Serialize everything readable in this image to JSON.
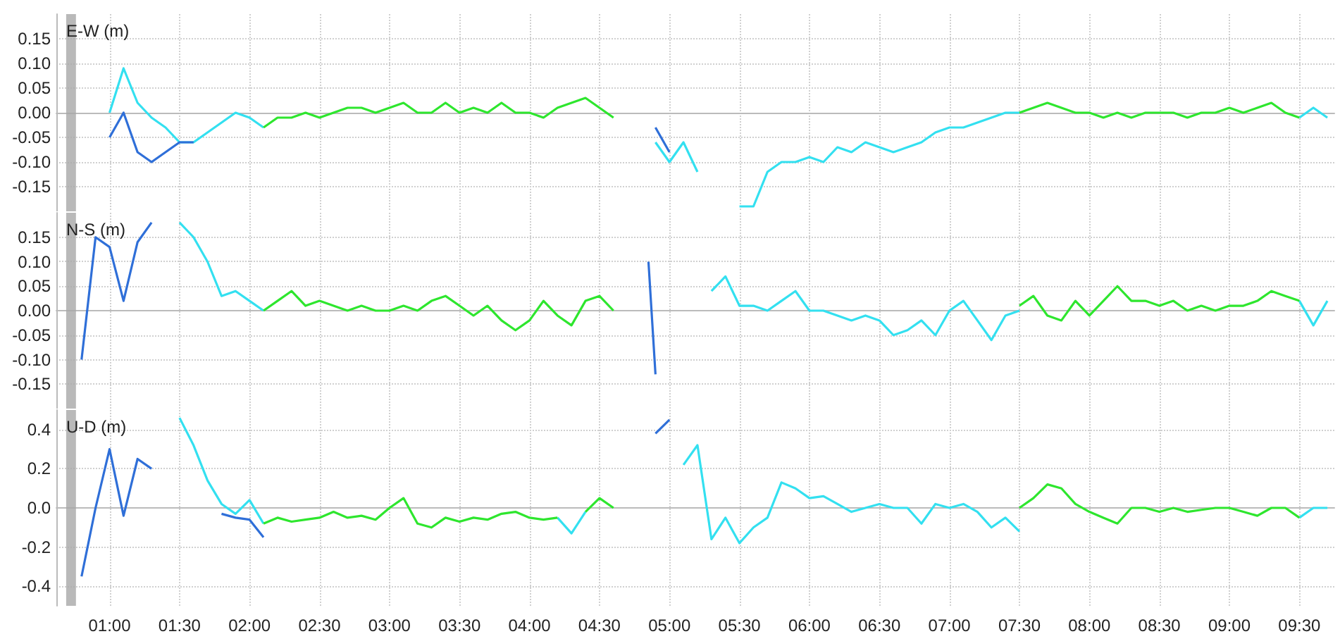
{
  "chart_data": [
    {
      "type": "line",
      "title": "E-W (m)",
      "marker": "none",
      "grid": true,
      "tick_labels": "y",
      "xlim": [
        0.62,
        9.75
      ],
      "ylim": [
        -0.2,
        0.2
      ],
      "xticks": [
        {
          "value": 1,
          "label": null
        },
        {
          "value": 1.5,
          "label": null
        },
        {
          "value": 2,
          "label": null
        },
        {
          "value": 2.5,
          "label": null
        },
        {
          "value": 3,
          "label": null
        },
        {
          "value": 3.5,
          "label": null
        },
        {
          "value": 4,
          "label": null
        },
        {
          "value": 4.5,
          "label": null
        },
        {
          "value": 5,
          "label": null
        },
        {
          "value": 5.5,
          "label": null
        },
        {
          "value": 6,
          "label": null
        },
        {
          "value": 6.5,
          "label": null
        },
        {
          "value": 7,
          "label": null
        },
        {
          "value": 7.5,
          "label": null
        },
        {
          "value": 8,
          "label": null
        },
        {
          "value": 8.5,
          "label": null
        },
        {
          "value": 9,
          "label": null
        },
        {
          "value": 9.5,
          "label": null
        }
      ],
      "yticks": [
        {
          "value": -0.15,
          "label": "-0.15"
        },
        {
          "value": -0.1,
          "label": "-0.10"
        },
        {
          "value": -0.05,
          "label": "-0.05"
        },
        {
          "value": 0,
          "label": "0.00"
        },
        {
          "value": 0.05,
          "label": "0.05"
        },
        {
          "value": 0.1,
          "label": "0.10"
        },
        {
          "value": 0.15,
          "label": "0.15"
        }
      ],
      "bands": [
        {
          "axis": "x",
          "from": 0.69,
          "to": 0.76,
          "color": "#a8a8a8"
        }
      ],
      "series": [
        {
          "color": "#33e0f0",
          "x": [
            1.0,
            1.1,
            1.2,
            1.3,
            1.4,
            1.5,
            1.6,
            1.7,
            1.8,
            1.9,
            2.0,
            2.1,
            2.2,
            4.9,
            5.0,
            5.1,
            5.2,
            5.3,
            5.4,
            5.5,
            5.6,
            5.7,
            5.8,
            5.9,
            6.0,
            6.1,
            6.2,
            6.3,
            6.4,
            6.5,
            6.6,
            6.7,
            6.8,
            6.9,
            7.0,
            7.1,
            7.2,
            7.3,
            7.4,
            7.5,
            7.6,
            9.5,
            9.6,
            9.7
          ],
          "values": [
            0.0,
            0.09,
            0.02,
            -0.01,
            -0.03,
            -0.06,
            -0.06,
            -0.04,
            -0.02,
            0.0,
            -0.01,
            -0.03,
            null,
            -0.06,
            -0.1,
            -0.06,
            -0.12,
            null,
            null,
            -0.19,
            -0.19,
            -0.12,
            -0.1,
            -0.1,
            -0.09,
            -0.1,
            -0.07,
            -0.08,
            -0.06,
            -0.07,
            -0.08,
            -0.07,
            -0.06,
            -0.04,
            -0.03,
            -0.03,
            -0.02,
            -0.01,
            0.0,
            0.0,
            null,
            -0.01,
            0.01,
            -0.01
          ]
        },
        {
          "color": "#2f6fd8",
          "x": [
            1.0,
            1.1,
            1.2,
            1.3,
            1.4,
            1.5,
            1.6,
            1.7,
            4.9,
            5.0
          ],
          "values": [
            -0.05,
            0.0,
            -0.08,
            -0.1,
            -0.08,
            -0.06,
            -0.06,
            null,
            -0.03,
            -0.08
          ]
        },
        {
          "color": "#2ee62e",
          "x": [
            2.1,
            2.2,
            2.3,
            2.4,
            2.5,
            2.6,
            2.7,
            2.8,
            2.9,
            3.0,
            3.1,
            3.2,
            3.3,
            3.4,
            3.5,
            3.6,
            3.7,
            3.8,
            3.9,
            4.0,
            4.1,
            4.2,
            4.3,
            4.4,
            4.5,
            4.6,
            4.7,
            7.5,
            7.6,
            7.7,
            7.8,
            7.9,
            8.0,
            8.1,
            8.2,
            8.3,
            8.4,
            8.5,
            8.6,
            8.7,
            8.8,
            8.9,
            9.0,
            9.1,
            9.2,
            9.3,
            9.4,
            9.5
          ],
          "values": [
            -0.03,
            -0.01,
            -0.01,
            0.0,
            -0.01,
            0.0,
            0.01,
            0.01,
            0.0,
            0.01,
            0.02,
            0.0,
            0.0,
            0.02,
            0.0,
            0.01,
            0.0,
            0.02,
            0.0,
            0.0,
            -0.01,
            0.01,
            0.02,
            0.03,
            0.01,
            -0.01,
            null,
            0.0,
            0.01,
            0.02,
            0.01,
            0.0,
            0.0,
            -0.01,
            0.0,
            -0.01,
            0.0,
            0.0,
            0.0,
            -0.01,
            0.0,
            0.0,
            0.01,
            0.0,
            0.01,
            0.02,
            0.0,
            -0.01
          ]
        }
      ]
    },
    {
      "type": "line",
      "title": "N-S (m)",
      "marker": "none",
      "grid": true,
      "tick_labels": "y",
      "xlim": [
        0.62,
        9.75
      ],
      "ylim": [
        -0.2,
        0.2
      ],
      "xticks": [
        {
          "value": 1,
          "label": null
        },
        {
          "value": 1.5,
          "label": null
        },
        {
          "value": 2,
          "label": null
        },
        {
          "value": 2.5,
          "label": null
        },
        {
          "value": 3,
          "label": null
        },
        {
          "value": 3.5,
          "label": null
        },
        {
          "value": 4,
          "label": null
        },
        {
          "value": 4.5,
          "label": null
        },
        {
          "value": 5,
          "label": null
        },
        {
          "value": 5.5,
          "label": null
        },
        {
          "value": 6,
          "label": null
        },
        {
          "value": 6.5,
          "label": null
        },
        {
          "value": 7,
          "label": null
        },
        {
          "value": 7.5,
          "label": null
        },
        {
          "value": 8,
          "label": null
        },
        {
          "value": 8.5,
          "label": null
        },
        {
          "value": 9,
          "label": null
        },
        {
          "value": 9.5,
          "label": null
        }
      ],
      "yticks": [
        {
          "value": -0.15,
          "label": "-0.15"
        },
        {
          "value": -0.1,
          "label": "-0.10"
        },
        {
          "value": -0.05,
          "label": "-0.05"
        },
        {
          "value": 0,
          "label": "0.00"
        },
        {
          "value": 0.05,
          "label": "0.05"
        },
        {
          "value": 0.1,
          "label": "0.10"
        },
        {
          "value": 0.15,
          "label": "0.15"
        }
      ],
      "bands": [
        {
          "axis": "x",
          "from": 0.69,
          "to": 0.76,
          "color": "#a8a8a8"
        }
      ],
      "series": [
        {
          "color": "#33e0f0",
          "x": [
            1.5,
            1.6,
            1.7,
            1.8,
            1.9,
            2.0,
            2.1,
            2.2,
            5.3,
            5.4,
            5.5,
            5.6,
            5.7,
            5.8,
            5.9,
            6.0,
            6.1,
            6.2,
            6.3,
            6.4,
            6.5,
            6.6,
            6.7,
            6.8,
            6.9,
            7.0,
            7.1,
            7.2,
            7.3,
            7.4,
            7.5,
            7.6,
            9.5,
            9.6,
            9.7
          ],
          "values": [
            0.18,
            0.15,
            0.1,
            0.03,
            0.04,
            0.02,
            0.0,
            null,
            0.04,
            0.07,
            0.01,
            0.01,
            0.0,
            0.02,
            0.04,
            0.0,
            0.0,
            -0.01,
            -0.02,
            -0.01,
            -0.02,
            -0.05,
            -0.04,
            -0.02,
            -0.05,
            0.0,
            0.02,
            -0.02,
            -0.06,
            -0.01,
            0.0,
            null,
            0.02,
            -0.03,
            0.02
          ]
        },
        {
          "color": "#2f6fd8",
          "x": [
            0.8,
            0.9,
            1.0,
            1.1,
            1.2,
            1.3,
            1.4,
            4.85,
            4.9
          ],
          "values": [
            -0.1,
            0.15,
            0.13,
            0.02,
            0.14,
            0.18,
            null,
            0.1,
            -0.13
          ]
        },
        {
          "color": "#2ee62e",
          "x": [
            2.1,
            2.2,
            2.3,
            2.4,
            2.5,
            2.6,
            2.7,
            2.8,
            2.9,
            3.0,
            3.1,
            3.2,
            3.3,
            3.4,
            3.5,
            3.6,
            3.7,
            3.8,
            3.9,
            4.0,
            4.1,
            4.2,
            4.3,
            4.4,
            4.5,
            4.6,
            4.7,
            7.5,
            7.6,
            7.7,
            7.8,
            7.9,
            8.0,
            8.1,
            8.2,
            8.3,
            8.4,
            8.5,
            8.6,
            8.7,
            8.8,
            8.9,
            9.0,
            9.1,
            9.2,
            9.3,
            9.4,
            9.5
          ],
          "values": [
            0.0,
            0.02,
            0.04,
            0.01,
            0.02,
            0.01,
            0.0,
            0.01,
            0.0,
            0.0,
            0.01,
            0.0,
            0.02,
            0.03,
            0.01,
            -0.01,
            0.01,
            -0.02,
            -0.04,
            -0.02,
            0.02,
            -0.01,
            -0.03,
            0.02,
            0.03,
            0.0,
            null,
            0.01,
            0.03,
            -0.01,
            -0.02,
            0.02,
            -0.01,
            0.02,
            0.05,
            0.02,
            0.02,
            0.01,
            0.02,
            0.0,
            0.01,
            0.0,
            0.01,
            0.01,
            0.02,
            0.04,
            0.03,
            0.02
          ]
        }
      ]
    },
    {
      "type": "line",
      "title": "U-D (m)",
      "marker": "none",
      "grid": true,
      "xlim": [
        0.62,
        9.75
      ],
      "ylim": [
        -0.5,
        0.5
      ],
      "xticks": [
        {
          "value": 1,
          "label": "01:00"
        },
        {
          "value": 1.5,
          "label": "01:30"
        },
        {
          "value": 2,
          "label": "02:00"
        },
        {
          "value": 2.5,
          "label": "02:30"
        },
        {
          "value": 3,
          "label": "03:00"
        },
        {
          "value": 3.5,
          "label": "03:30"
        },
        {
          "value": 4,
          "label": "04:00"
        },
        {
          "value": 4.5,
          "label": "04:30"
        },
        {
          "value": 5,
          "label": "05:00"
        },
        {
          "value": 5.5,
          "label": "05:30"
        },
        {
          "value": 6,
          "label": "06:00"
        },
        {
          "value": 6.5,
          "label": "06:30"
        },
        {
          "value": 7,
          "label": "07:00"
        },
        {
          "value": 7.5,
          "label": "07:30"
        },
        {
          "value": 8,
          "label": "08:00"
        },
        {
          "value": 8.5,
          "label": "08:30"
        },
        {
          "value": 9,
          "label": "09:00"
        },
        {
          "value": 9.5,
          "label": "09:30"
        }
      ],
      "yticks": [
        -0.4,
        -0.2,
        {
          "value": 0,
          "label": "0.0"
        },
        0.2,
        0.4
      ],
      "bands": [
        {
          "axis": "x",
          "from": 0.69,
          "to": 0.76,
          "color": "#a8a8a8"
        }
      ],
      "series": [
        {
          "color": "#33e0f0",
          "x": [
            1.5,
            1.6,
            1.7,
            1.8,
            1.9,
            2.0,
            2.1,
            2.2,
            4.2,
            4.3,
            4.4,
            4.5,
            5.1,
            5.2,
            5.3,
            5.4,
            5.5,
            5.6,
            5.7,
            5.8,
            5.9,
            6.0,
            6.1,
            6.2,
            6.3,
            6.4,
            6.5,
            6.6,
            6.7,
            6.8,
            6.9,
            7.0,
            7.1,
            7.2,
            7.3,
            7.4,
            7.5,
            7.6,
            9.5,
            9.6,
            9.7
          ],
          "values": [
            0.46,
            0.32,
            0.14,
            0.02,
            -0.03,
            0.04,
            -0.08,
            null,
            -0.05,
            -0.13,
            -0.02,
            null,
            0.22,
            0.32,
            -0.16,
            -0.05,
            -0.18,
            -0.1,
            -0.05,
            0.13,
            0.1,
            0.05,
            0.06,
            0.02,
            -0.02,
            0.0,
            0.02,
            0.0,
            0.0,
            -0.08,
            0.02,
            0.0,
            0.02,
            -0.02,
            -0.1,
            -0.05,
            -0.12,
            null,
            -0.05,
            0.0,
            0.0
          ]
        },
        {
          "color": "#2f6fd8",
          "x": [
            0.8,
            0.9,
            1.0,
            1.1,
            1.2,
            1.3,
            1.4,
            1.8,
            1.9,
            2.0,
            2.1,
            2.2,
            4.9,
            5.0
          ],
          "values": [
            -0.35,
            0.0,
            0.3,
            -0.04,
            0.25,
            0.2,
            null,
            -0.03,
            -0.05,
            -0.06,
            -0.15,
            null,
            0.38,
            0.45
          ]
        },
        {
          "color": "#2ee62e",
          "x": [
            2.1,
            2.2,
            2.3,
            2.4,
            2.5,
            2.6,
            2.7,
            2.8,
            2.9,
            3.0,
            3.1,
            3.2,
            3.3,
            3.4,
            3.5,
            3.6,
            3.7,
            3.8,
            3.9,
            4.0,
            4.1,
            4.2,
            4.3,
            4.4,
            4.5,
            4.6,
            4.7,
            7.5,
            7.6,
            7.7,
            7.8,
            7.9,
            8.0,
            8.1,
            8.2,
            8.3,
            8.4,
            8.5,
            8.6,
            8.7,
            8.8,
            8.9,
            9.0,
            9.1,
            9.2,
            9.3,
            9.4,
            9.5
          ],
          "values": [
            -0.08,
            -0.05,
            -0.07,
            -0.06,
            -0.05,
            -0.02,
            -0.05,
            -0.04,
            -0.06,
            0.0,
            0.05,
            -0.08,
            -0.1,
            -0.05,
            -0.07,
            -0.05,
            -0.06,
            -0.03,
            -0.02,
            -0.05,
            -0.06,
            -0.05,
            null,
            -0.02,
            0.05,
            0.0,
            null,
            0.0,
            0.05,
            0.12,
            0.1,
            0.02,
            -0.02,
            -0.05,
            -0.08,
            0.0,
            0.0,
            -0.02,
            0.0,
            -0.02,
            -0.01,
            0.0,
            0.0,
            -0.02,
            -0.04,
            0.0,
            0.0,
            -0.05
          ]
        }
      ]
    }
  ]
}
